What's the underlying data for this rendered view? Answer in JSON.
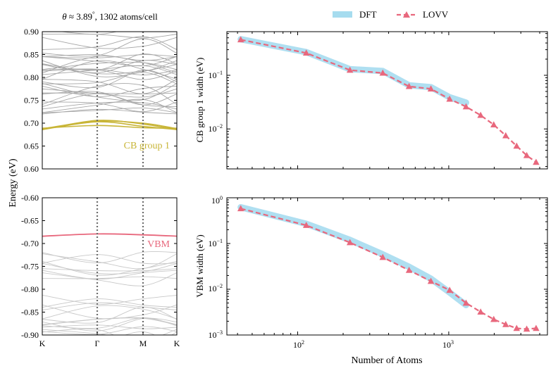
{
  "chart_data": [
    {
      "type": "line",
      "panel": "band-structure-conduction",
      "title": "θ ≈ 3.89°, 1302 atoms/cell",
      "title_parts": {
        "theta_sym": "θ",
        "approx": " ≈ 3.89",
        "degree": "°",
        "rest": ", 1302 atoms/cell"
      },
      "ylim": [
        0.6,
        0.9
      ],
      "yticks": [
        0.6,
        0.65,
        0.7,
        0.75,
        0.8,
        0.85,
        0.9
      ],
      "ytick_labels": [
        "0.60",
        "0.65",
        "0.70",
        "0.75",
        "0.80",
        "0.85",
        "0.90"
      ],
      "annotation": "CB group 1",
      "colors": {
        "group": "#c8b537",
        "other": "#a6a6a6"
      },
      "cb_group_bands": [
        {
          "name": "cb1-a",
          "values": [
            0.686,
            0.706,
            0.698,
            0.686
          ]
        },
        {
          "name": "cb1-b",
          "values": [
            0.688,
            0.704,
            0.7,
            0.688
          ]
        },
        {
          "name": "cb1-c",
          "values": [
            0.686,
            0.703,
            0.693,
            0.686
          ]
        },
        {
          "name": "cb1-d",
          "values": [
            0.689,
            0.695,
            0.69,
            0.689
          ]
        }
      ]
    },
    {
      "type": "line",
      "panel": "band-structure-valence",
      "ylim": [
        -0.9,
        -0.6
      ],
      "yticks": [
        -0.9,
        -0.85,
        -0.8,
        -0.75,
        -0.7,
        -0.65,
        -0.6
      ],
      "ytick_labels": [
        "-0.90",
        "-0.85",
        "-0.80",
        "-0.75",
        "-0.70",
        "-0.65",
        "-0.60"
      ],
      "annotation": "VBM",
      "colors": {
        "vbm": "#e8687d",
        "other": "#c8c8c8"
      },
      "vbm_band": {
        "values": [
          -0.684,
          -0.679,
          -0.681,
          -0.684
        ]
      },
      "xtick_labels": [
        "K",
        "Γ",
        "M",
        "K"
      ],
      "ylabel": "Energy (eV)"
    },
    {
      "type": "line",
      "panel": "cb-width",
      "ylabel": "CB group 1 width (eV)",
      "xscale": "log",
      "yscale": "log",
      "xlim": [
        34,
        4500
      ],
      "ylim": [
        0.0018,
        0.65
      ],
      "series": [
        {
          "name": "DFT",
          "x": [
            42,
            114,
            222,
            366,
            546,
            762,
            1014,
            1302
          ],
          "values": [
            0.47,
            0.27,
            0.13,
            0.12,
            0.065,
            0.06,
            0.039,
            0.031
          ],
          "color": "#a6dcef"
        },
        {
          "name": "LOVV",
          "x": [
            42,
            114,
            222,
            366,
            546,
            762,
            1014,
            1302,
            1626,
            1986,
            2382,
            2814,
            3282,
            3786
          ],
          "values": [
            0.46,
            0.26,
            0.125,
            0.11,
            0.062,
            0.056,
            0.036,
            0.026,
            0.018,
            0.012,
            0.0075,
            0.0048,
            0.0032,
            0.0024
          ],
          "color": "#e8687d"
        }
      ]
    },
    {
      "type": "line",
      "panel": "vbm-width",
      "ylabel": "VBM width (eV)",
      "xlabel": "Number of Atoms",
      "xscale": "log",
      "yscale": "log",
      "xlim": [
        34,
        4500
      ],
      "ylim": [
        0.001,
        1.0
      ],
      "series": [
        {
          "name": "DFT",
          "x": [
            42,
            114,
            222,
            366,
            546,
            762,
            1014,
            1302
          ],
          "values": [
            0.62,
            0.27,
            0.12,
            0.058,
            0.031,
            0.017,
            0.0085,
            0.0045
          ],
          "color": "#a6dcef"
        },
        {
          "name": "LOVV",
          "x": [
            42,
            114,
            222,
            366,
            546,
            762,
            1014,
            1302,
            1626,
            1986,
            2382,
            2814,
            3282,
            3786
          ],
          "values": [
            0.58,
            0.25,
            0.105,
            0.05,
            0.026,
            0.015,
            0.0095,
            0.005,
            0.0032,
            0.0022,
            0.0017,
            0.0014,
            0.00135,
            0.0014
          ],
          "color": "#e8687d"
        }
      ]
    }
  ],
  "legend": {
    "dft": "DFT",
    "lovv": "LOVV"
  },
  "log_ticks": {
    "x_base": "10",
    "x_exps": [
      "2",
      "3"
    ],
    "cb_y_base": "10",
    "cb_y_exps": [
      "−1",
      "−2"
    ],
    "vbm_y_base": "10",
    "vbm_y_exps": [
      "0",
      "−1",
      "−2",
      "−3"
    ]
  }
}
